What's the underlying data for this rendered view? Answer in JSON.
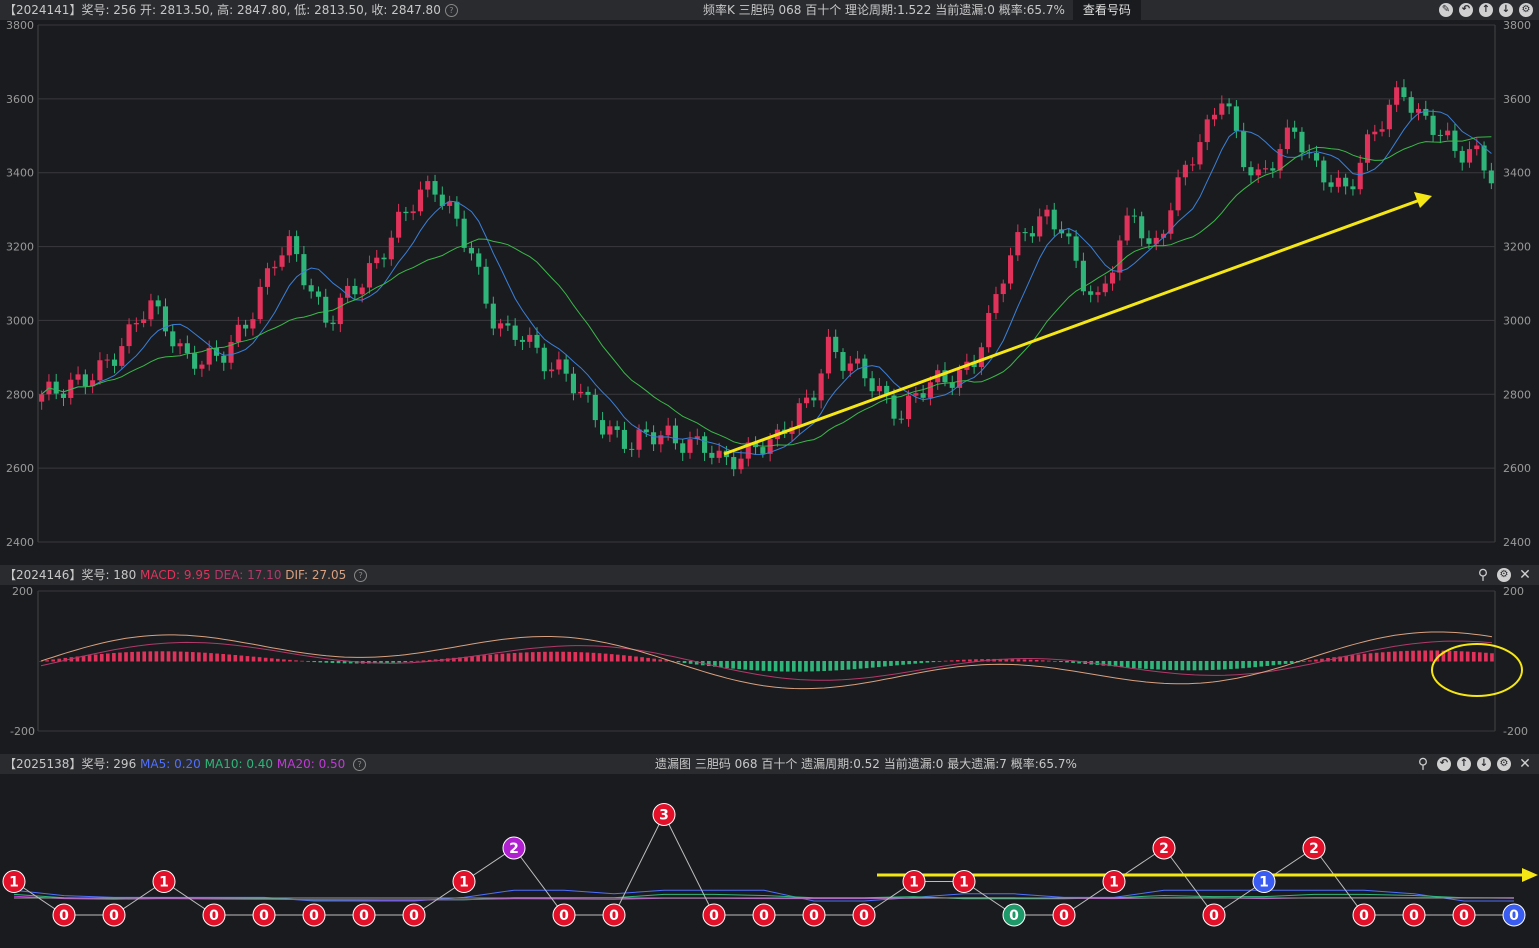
{
  "main": {
    "header_left": "【2024141】奖号: 256   开: 2813.50, 高: 2847.80, 低: 2813.50, 收: 2847.80",
    "header_center": "频率K   三胆码   068   百十个   理论周期:1.522   当前遗漏:0   概率:65.7%",
    "query_button": "查看号码",
    "y_ticks": [
      "3800",
      "3600",
      "3400",
      "3200",
      "3000",
      "2800",
      "2600",
      "2400"
    ],
    "icons": [
      "edit-icon",
      "undo-icon",
      "up-icon",
      "down-icon",
      "settings-icon"
    ]
  },
  "macd": {
    "header_prefix": "【2024146】奖号: 180",
    "macd_label": "MACD: 9.95",
    "dea_label": "DEA: 17.10",
    "dif_label": "DIF: 27.05",
    "y_top": "200",
    "y_bottom": "-200",
    "colors": {
      "macd": "#e0325a",
      "dea": "#b03a6a",
      "dif": "#d8a080"
    }
  },
  "miss": {
    "header_prefix": "【2025138】奖号: 296",
    "ma5_label": "MA5: 0.20",
    "ma10_label": "MA10: 0.40",
    "ma20_label": "MA20: 0.50",
    "header_center": "遗漏图   三胆码   068   百十个   遗漏周期:0.52   当前遗漏:0   最大遗漏:7   概率:65.7%",
    "colors": {
      "ma5": "#4f6fff",
      "ma10": "#2fb57a",
      "ma20": "#c03ad8"
    }
  },
  "chart_data": [
    {
      "type": "candlestick",
      "title": "频率K",
      "ylim": [
        2400,
        3800
      ],
      "grid": true,
      "close_approx": [
        2800,
        2790,
        2830,
        2880,
        2900,
        2950,
        3050,
        3000,
        2900,
        2870,
        2900,
        2980,
        3050,
        3150,
        3200,
        3100,
        3000,
        3050,
        3100,
        3200,
        3280,
        3320,
        3350,
        3300,
        3200,
        3000,
        2950,
        2980,
        2900,
        2850,
        2800,
        2750,
        2700,
        2650,
        2680,
        2700,
        2680,
        2650,
        2600,
        2640,
        2680,
        2660,
        2720,
        2800,
        2950,
        2870,
        2840,
        2800,
        2760,
        2800,
        2820,
        2850,
        2900,
        3000,
        3150,
        3250,
        3300,
        3250,
        3100,
        3050,
        3200,
        3300,
        3150,
        3300,
        3450,
        3500,
        3600,
        3450,
        3400,
        3450,
        3500,
        3420,
        3400,
        3350,
        3450,
        3550,
        3650,
        3550,
        3500,
        3450,
        3480,
        3400
      ],
      "ma_series": [
        {
          "name": "MA5",
          "color": "#3a7fd8"
        },
        {
          "name": "MA10",
          "color": "#3ab84a"
        }
      ]
    },
    {
      "type": "bar",
      "title": "MACD",
      "ylim": [
        -200,
        200
      ]
    },
    {
      "type": "line",
      "title": "遗漏图",
      "points": [
        1,
        0,
        0,
        1,
        0,
        0,
        0,
        0,
        0,
        1,
        2,
        0,
        0,
        3,
        0,
        0,
        0,
        0,
        1,
        1,
        0,
        0,
        1,
        2,
        0,
        1,
        2,
        0,
        0,
        0,
        0
      ],
      "point_colors": [
        "red",
        "red",
        "red",
        "red",
        "red",
        "red",
        "red",
        "red",
        "red",
        "red",
        "purple",
        "red",
        "red",
        "red",
        "red",
        "red",
        "red",
        "red",
        "red",
        "red",
        "green",
        "red",
        "red",
        "red",
        "red",
        "blue",
        "red",
        "red",
        "red",
        "red",
        "blue"
      ]
    }
  ]
}
